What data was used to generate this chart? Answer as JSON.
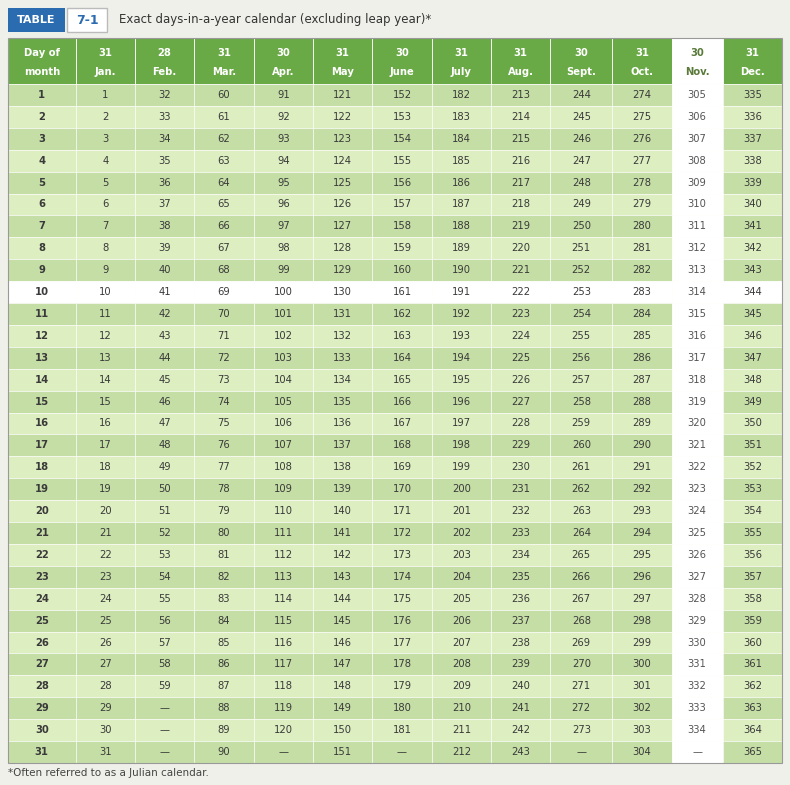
{
  "title_table": "TABLE",
  "title_num": "7-1",
  "title_desc": "Exact days-in-a-year calendar (excluding leap year)*",
  "footnote": "*Often referred to as a Julian calendar.",
  "col_headers": [
    [
      "Day of",
      "month"
    ],
    [
      "31",
      "Jan."
    ],
    [
      "28",
      "Feb."
    ],
    [
      "31",
      "Mar."
    ],
    [
      "30",
      "Apr."
    ],
    [
      "31",
      "May"
    ],
    [
      "30",
      "June"
    ],
    [
      "31",
      "July"
    ],
    [
      "31",
      "Aug."
    ],
    [
      "30",
      "Sept."
    ],
    [
      "31",
      "Oct."
    ],
    [
      "30",
      "Nov."
    ],
    [
      "31",
      "Dec."
    ]
  ],
  "nov_col_index": 11,
  "green_header": "#6aaa46",
  "green_row_dark": "#c5dea5",
  "green_row_light": "#ddeec0",
  "white": "#ffffff",
  "row10_bg": "#ffffff",
  "header_text": "#ffffff",
  "nov_text": "#5a7a3a",
  "data_text": "#3a3a3a",
  "bg_color": "#f0f0eb",
  "blue_box": "#2b6cb0",
  "border_color": "#aaaaaa",
  "table_data": [
    [
      1,
      1,
      32,
      60,
      91,
      121,
      152,
      182,
      213,
      244,
      274,
      305,
      335
    ],
    [
      2,
      2,
      33,
      61,
      92,
      122,
      153,
      183,
      214,
      245,
      275,
      306,
      336
    ],
    [
      3,
      3,
      34,
      62,
      93,
      123,
      154,
      184,
      215,
      246,
      276,
      307,
      337
    ],
    [
      4,
      4,
      35,
      63,
      94,
      124,
      155,
      185,
      216,
      247,
      277,
      308,
      338
    ],
    [
      5,
      5,
      36,
      64,
      95,
      125,
      156,
      186,
      217,
      248,
      278,
      309,
      339
    ],
    [
      6,
      6,
      37,
      65,
      96,
      126,
      157,
      187,
      218,
      249,
      279,
      310,
      340
    ],
    [
      7,
      7,
      38,
      66,
      97,
      127,
      158,
      188,
      219,
      250,
      280,
      311,
      341
    ],
    [
      8,
      8,
      39,
      67,
      98,
      128,
      159,
      189,
      220,
      251,
      281,
      312,
      342
    ],
    [
      9,
      9,
      40,
      68,
      99,
      129,
      160,
      190,
      221,
      252,
      282,
      313,
      343
    ],
    [
      10,
      10,
      41,
      69,
      100,
      130,
      161,
      191,
      222,
      253,
      283,
      314,
      344
    ],
    [
      11,
      11,
      42,
      70,
      101,
      131,
      162,
      192,
      223,
      254,
      284,
      315,
      345
    ],
    [
      12,
      12,
      43,
      71,
      102,
      132,
      163,
      193,
      224,
      255,
      285,
      316,
      346
    ],
    [
      13,
      13,
      44,
      72,
      103,
      133,
      164,
      194,
      225,
      256,
      286,
      317,
      347
    ],
    [
      14,
      14,
      45,
      73,
      104,
      134,
      165,
      195,
      226,
      257,
      287,
      318,
      348
    ],
    [
      15,
      15,
      46,
      74,
      105,
      135,
      166,
      196,
      227,
      258,
      288,
      319,
      349
    ],
    [
      16,
      16,
      47,
      75,
      106,
      136,
      167,
      197,
      228,
      259,
      289,
      320,
      350
    ],
    [
      17,
      17,
      48,
      76,
      107,
      137,
      168,
      198,
      229,
      260,
      290,
      321,
      351
    ],
    [
      18,
      18,
      49,
      77,
      108,
      138,
      169,
      199,
      230,
      261,
      291,
      322,
      352
    ],
    [
      19,
      19,
      50,
      78,
      109,
      139,
      170,
      200,
      231,
      262,
      292,
      323,
      353
    ],
    [
      20,
      20,
      51,
      79,
      110,
      140,
      171,
      201,
      232,
      263,
      293,
      324,
      354
    ],
    [
      21,
      21,
      52,
      80,
      111,
      141,
      172,
      202,
      233,
      264,
      294,
      325,
      355
    ],
    [
      22,
      22,
      53,
      81,
      112,
      142,
      173,
      203,
      234,
      265,
      295,
      326,
      356
    ],
    [
      23,
      23,
      54,
      82,
      113,
      143,
      174,
      204,
      235,
      266,
      296,
      327,
      357
    ],
    [
      24,
      24,
      55,
      83,
      114,
      144,
      175,
      205,
      236,
      267,
      297,
      328,
      358
    ],
    [
      25,
      25,
      56,
      84,
      115,
      145,
      176,
      206,
      237,
      268,
      298,
      329,
      359
    ],
    [
      26,
      26,
      57,
      85,
      116,
      146,
      177,
      207,
      238,
      269,
      299,
      330,
      360
    ],
    [
      27,
      27,
      58,
      86,
      117,
      147,
      178,
      208,
      239,
      270,
      300,
      331,
      361
    ],
    [
      28,
      28,
      59,
      87,
      118,
      148,
      179,
      209,
      240,
      271,
      301,
      332,
      362
    ],
    [
      29,
      29,
      null,
      88,
      119,
      149,
      180,
      210,
      241,
      272,
      302,
      333,
      363
    ],
    [
      30,
      30,
      null,
      89,
      120,
      150,
      181,
      211,
      242,
      273,
      303,
      334,
      364
    ],
    [
      31,
      31,
      null,
      90,
      null,
      151,
      null,
      212,
      243,
      null,
      304,
      null,
      365
    ]
  ]
}
